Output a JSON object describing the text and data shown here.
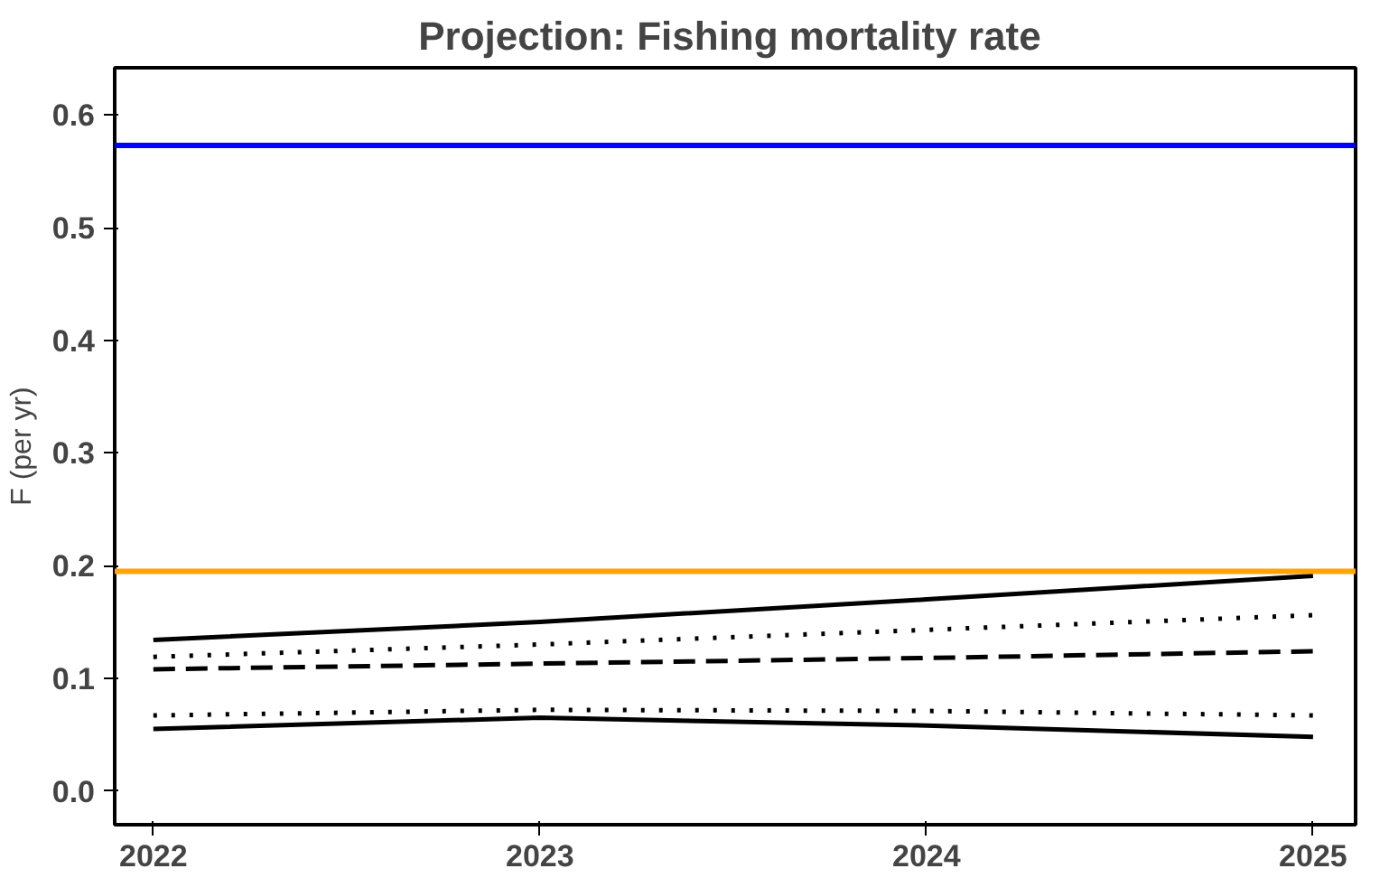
{
  "chart_data": {
    "type": "line",
    "title": "Projection:  Fishing mortality rate",
    "ylabel": "F (per yr)",
    "x": [
      2022,
      2023,
      2024,
      2025
    ],
    "xlim": [
      2021.9,
      2025.11
    ],
    "xticks": [
      2022,
      2023,
      2024,
      2025
    ],
    "ylim": [
      -0.03,
      0.642
    ],
    "yticks": [
      {
        "value": 0,
        "label": "0.0"
      },
      {
        "value": 0.1,
        "label": "0.1"
      },
      {
        "value": 0.2,
        "label": "0.2"
      },
      {
        "value": 0.3,
        "label": "0.3"
      },
      {
        "value": 0.4,
        "label": "0.4"
      },
      {
        "value": 0.5,
        "label": "0.5"
      },
      {
        "value": 0.6,
        "label": "0.6"
      }
    ],
    "series": [
      {
        "color": "#000000",
        "line_style": "solid",
        "values": [
          0.134,
          0.15,
          0.17,
          0.191
        ]
      },
      {
        "color": "#000000",
        "line_style": "dotted",
        "values": [
          0.119,
          0.13,
          0.143,
          0.156
        ]
      },
      {
        "color": "#000000",
        "line_style": "dashed",
        "values": [
          0.108,
          0.113,
          0.118,
          0.124
        ]
      },
      {
        "color": "#000000",
        "line_style": "dotted",
        "values": [
          0.067,
          0.072,
          0.071,
          0.067
        ]
      },
      {
        "color": "#000000",
        "line_style": "solid",
        "values": [
          0.055,
          0.065,
          0.058,
          0.048
        ]
      }
    ],
    "ref_lines": [
      {
        "axis": "y",
        "value": 0.573,
        "color": "#0000ff"
      },
      {
        "axis": "y",
        "value": 0.195,
        "color": "#ffa500"
      }
    ],
    "grid": false
  }
}
